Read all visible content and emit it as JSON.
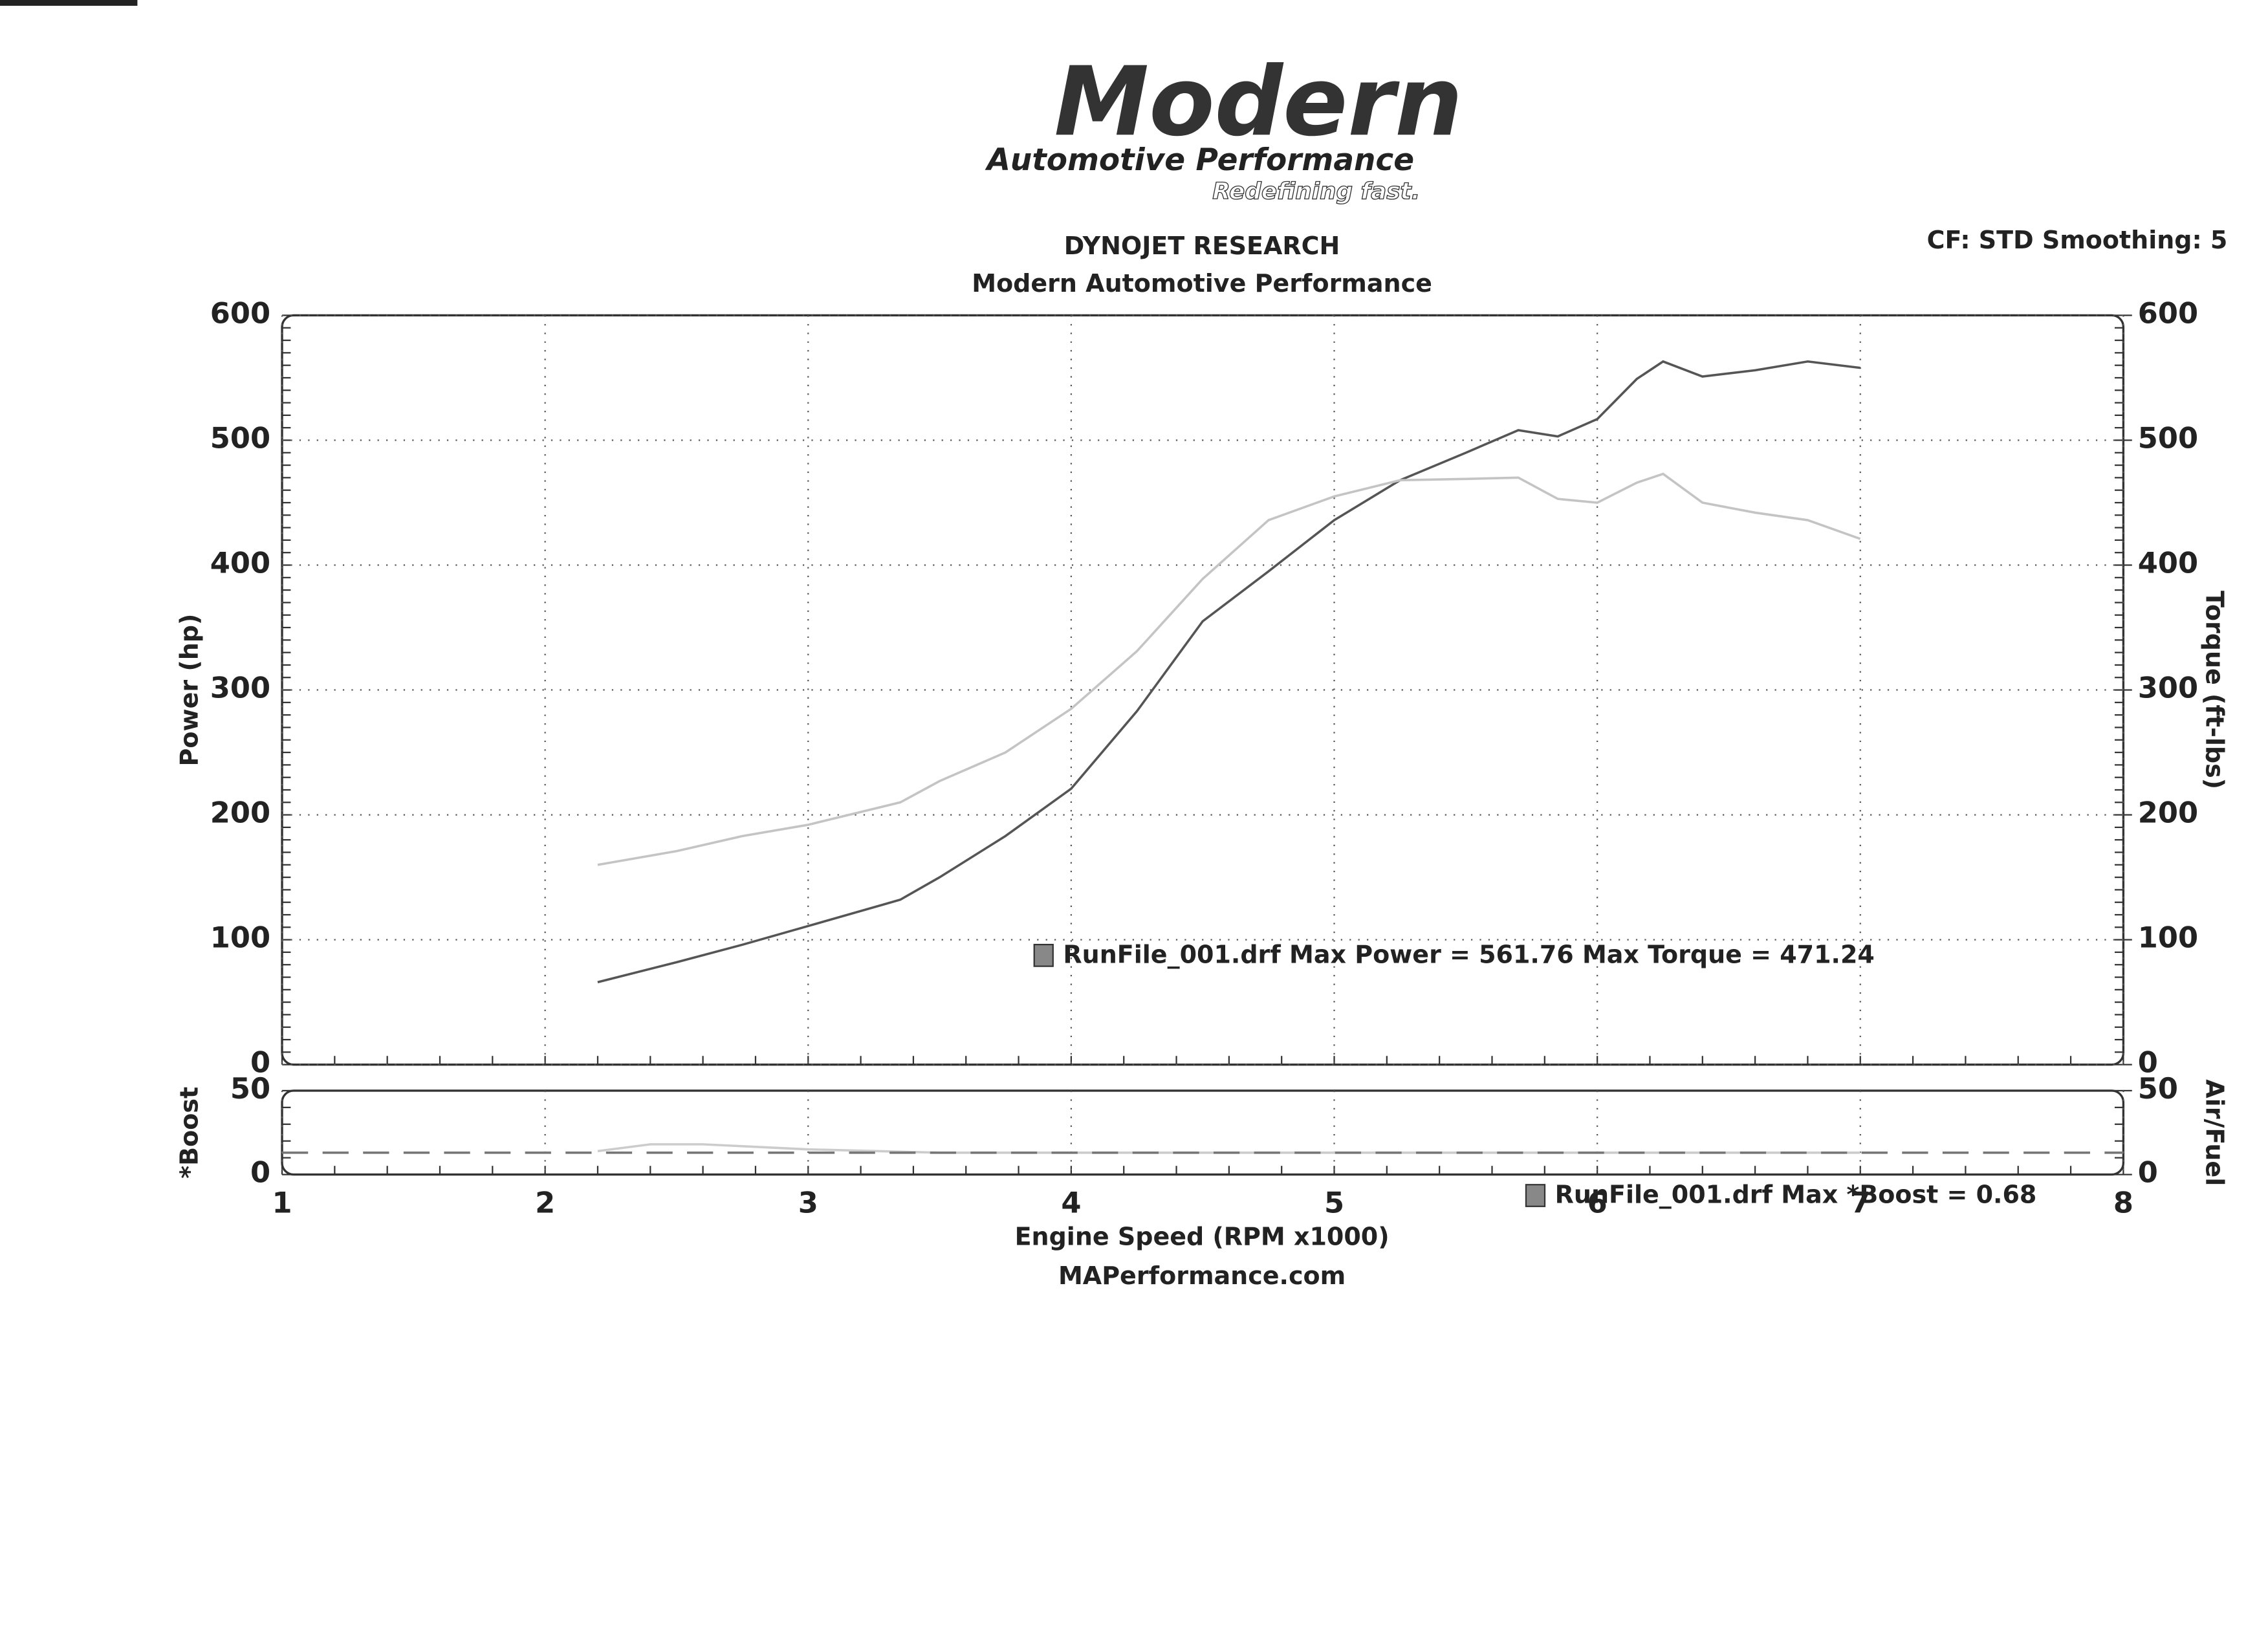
{
  "logo": {
    "name": "Modern",
    "line": "Automotive Performance",
    "tagline": "Redefining fast."
  },
  "header": {
    "title": "DYNOJET RESEARCH",
    "subtitle": "Modern Automotive Performance",
    "settings": "CF: STD  Smoothing: 5"
  },
  "footer": "MAPerformance.com",
  "chart_data": [
    {
      "type": "line",
      "ylabel": "Power (hp)",
      "y2label": "Torque (ft-lbs)",
      "annotation": "RunFile_001.drf Max Power = 561.76     Max Torque = 471.24",
      "x": [
        2.2,
        2.5,
        2.75,
        3.0,
        3.35,
        3.5,
        3.75,
        4.0,
        4.25,
        4.5,
        4.75,
        5.0,
        5.25,
        5.5,
        5.7,
        5.85,
        6.0,
        6.15,
        6.25,
        6.4,
        6.6,
        6.8,
        7.0
      ],
      "series": [
        {
          "color": "#555555",
          "values": [
            66,
            82,
            96,
            111,
            132,
            150,
            183,
            221,
            283,
            355,
            395,
            436,
            468,
            490,
            508,
            503,
            517,
            549,
            563,
            551,
            556,
            563,
            558
          ]
        },
        {
          "color": "#c4c4c4",
          "axis": "y2",
          "values": [
            160,
            171,
            183,
            192,
            210,
            227,
            250,
            285,
            331,
            389,
            436,
            455,
            468,
            469,
            470,
            453,
            450,
            466,
            473,
            450,
            442,
            436,
            421
          ]
        }
      ],
      "xlim": [
        1,
        8
      ],
      "xticks": [
        1,
        2,
        3,
        4,
        5,
        6,
        7,
        8
      ],
      "ylim": [
        0,
        600
      ],
      "yticks": [
        0,
        100,
        200,
        300,
        400,
        500,
        600
      ],
      "y2lim": [
        0,
        600
      ],
      "y2ticks": [
        0,
        100,
        200,
        300,
        400,
        500,
        600
      ],
      "grid": true
    },
    {
      "type": "line",
      "ylabel": "*Boost",
      "y2label": "Air/Fuel",
      "xlabel": "Engine Speed (RPM x1000)",
      "annotation": "RunFile_001.drf Max *Boost = 0.68",
      "x": [
        1,
        2.2,
        2.4,
        2.6,
        3.0,
        3.5,
        7.0,
        8
      ],
      "series": [
        {
          "color": "#cccccc",
          "values": [
            null,
            14,
            18,
            18,
            15,
            13,
            13,
            null
          ]
        },
        {
          "color": "#777777",
          "dash": true,
          "values": [
            13,
            13,
            13,
            13,
            13,
            13,
            13,
            13
          ]
        }
      ],
      "xlim": [
        1,
        8
      ],
      "xticks": [
        1,
        2,
        3,
        4,
        5,
        6,
        7,
        8
      ],
      "ylim": [
        0,
        50
      ],
      "yticks": [
        0,
        50
      ],
      "y2lim": [
        0,
        50
      ],
      "y2ticks": [
        0,
        50
      ],
      "grid": true
    }
  ]
}
